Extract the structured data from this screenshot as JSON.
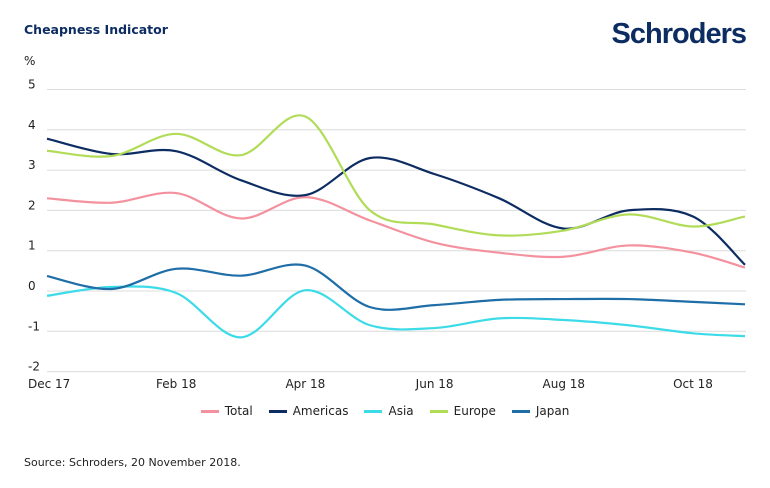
{
  "title": "Cheapness Indicator",
  "logo": "Schroders",
  "source": "Source: Schroders, 20 November 2018.",
  "chart_data": {
    "type": "line",
    "title": "Cheapness Indicator",
    "ylabel": "%",
    "ylim": [
      -2,
      5
    ],
    "yticks": [
      "5",
      "4",
      "3",
      "2",
      "1",
      "0",
      "-1",
      "-2"
    ],
    "xticks": [
      "Dec 17",
      "Feb 18",
      "Apr 18",
      "Jun 18",
      "Aug 18",
      "Oct 18"
    ],
    "grid": true,
    "legend": "bottom",
    "x": [
      "2017-12",
      "2018-01",
      "2018-02",
      "2018-03",
      "2018-04",
      "2018-05",
      "2018-06",
      "2018-07",
      "2018-08",
      "2018-09",
      "2018-10",
      "2018-11"
    ],
    "series": [
      {
        "name": "Total",
        "color": "#f4919e",
        "values": [
          2.3,
          2.19,
          2.43,
          1.8,
          2.33,
          1.75,
          1.2,
          0.95,
          0.85,
          1.13,
          0.95,
          0.58
        ]
      },
      {
        "name": "Americas",
        "color": "#0d2d62",
        "values": [
          3.78,
          3.4,
          3.47,
          2.75,
          2.38,
          3.3,
          2.9,
          2.3,
          1.55,
          2.0,
          1.85,
          0.65
        ]
      },
      {
        "name": "Asia",
        "color": "#3ddbe8",
        "values": [
          -0.12,
          0.1,
          -0.05,
          -1.15,
          0.02,
          -0.85,
          -0.92,
          -0.68,
          -0.72,
          -0.85,
          -1.05,
          -1.12
        ]
      },
      {
        "name": "Europe",
        "color": "#b1dc58",
        "values": [
          3.48,
          3.35,
          3.9,
          3.37,
          4.33,
          2.0,
          1.65,
          1.38,
          1.5,
          1.9,
          1.6,
          1.85
        ]
      },
      {
        "name": "Japan",
        "color": "#1f6ea8",
        "values": [
          0.37,
          0.05,
          0.55,
          0.38,
          0.63,
          -0.4,
          -0.35,
          -0.22,
          -0.2,
          -0.2,
          -0.27,
          -0.33
        ]
      }
    ]
  }
}
